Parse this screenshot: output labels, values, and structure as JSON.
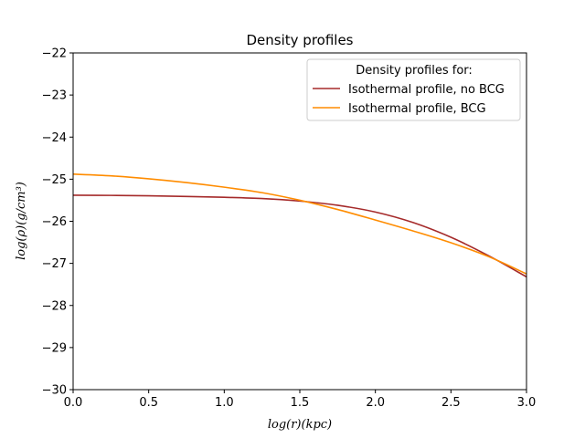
{
  "chart_data": {
    "type": "line",
    "title": "Density profiles",
    "xlabel": "log(r)(kpc)",
    "ylabel": "log(ρ)(g/cm³)",
    "xlim": [
      0.0,
      3.0
    ],
    "ylim": [
      -30,
      -22
    ],
    "xticks": [
      "0.0",
      "0.5",
      "1.0",
      "1.5",
      "2.0",
      "2.5",
      "3.0"
    ],
    "yticks": [
      "−22",
      "−23",
      "−24",
      "−25",
      "−26",
      "−27",
      "−28",
      "−29",
      "−30"
    ],
    "grid": false,
    "legend": {
      "title": "Density profiles for:",
      "placement": "upper-right"
    },
    "x": [
      0.0,
      0.25,
      0.5,
      0.75,
      1.0,
      1.25,
      1.5,
      1.75,
      2.0,
      2.25,
      2.5,
      2.75,
      3.0
    ],
    "series": [
      {
        "name": "Isothermal profile, no BCG",
        "color": "#a52a2a",
        "values": [
          -25.38,
          -25.385,
          -25.395,
          -25.41,
          -25.43,
          -25.46,
          -25.52,
          -25.62,
          -25.78,
          -26.03,
          -26.38,
          -26.82,
          -27.32
        ]
      },
      {
        "name": "Isothermal profile, BCG",
        "color": "#ff8c00",
        "values": [
          -24.88,
          -24.92,
          -24.99,
          -25.08,
          -25.19,
          -25.32,
          -25.5,
          -25.72,
          -25.97,
          -26.23,
          -26.51,
          -26.84,
          -27.25
        ]
      }
    ]
  }
}
